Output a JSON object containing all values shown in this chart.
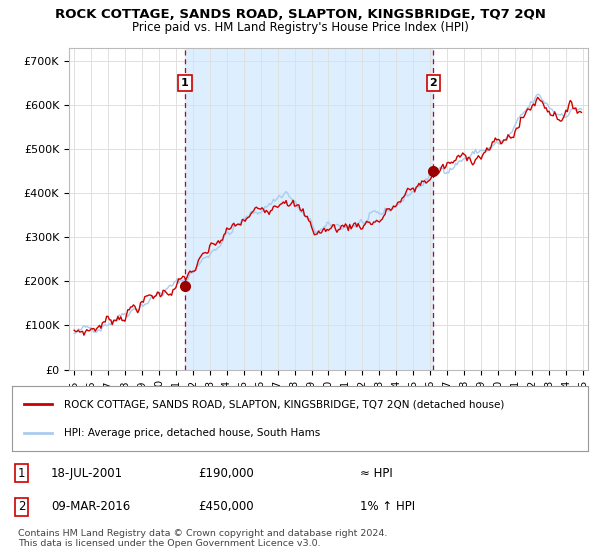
{
  "title": "ROCK COTTAGE, SANDS ROAD, SLAPTON, KINGSBRIDGE, TQ7 2QN",
  "subtitle": "Price paid vs. HM Land Registry's House Price Index (HPI)",
  "ylabel_ticks": [
    "£0",
    "£100K",
    "£200K",
    "£300K",
    "£400K",
    "£500K",
    "£600K",
    "£700K"
  ],
  "ytick_vals": [
    0,
    100000,
    200000,
    300000,
    400000,
    500000,
    600000,
    700000
  ],
  "ylim": [
    0,
    730000
  ],
  "xlim_start": 1994.7,
  "xlim_end": 2025.3,
  "sale1_x": 2001.54,
  "sale1_y": 190000,
  "sale2_x": 2016.19,
  "sale2_y": 450000,
  "legend_line1": "ROCK COTTAGE, SANDS ROAD, SLAPTON, KINGSBRIDGE, TQ7 2QN (detached house)",
  "legend_line2": "HPI: Average price, detached house, South Hams",
  "annotation1_label": "1",
  "annotation1_date": "18-JUL-2001",
  "annotation1_price": "£190,000",
  "annotation1_hpi": "≈ HPI",
  "annotation2_label": "2",
  "annotation2_date": "09-MAR-2016",
  "annotation2_price": "£450,000",
  "annotation2_hpi": "1% ↑ HPI",
  "footer": "Contains HM Land Registry data © Crown copyright and database right 2024.\nThis data is licensed under the Open Government Licence v3.0.",
  "line_color_red": "#cc0000",
  "line_color_blue": "#aaccee",
  "vline_color": "#cc0000",
  "sale_marker_color": "#990000",
  "box_color": "#cc0000",
  "shade_color": "#ddeeff",
  "background_color": "#ffffff",
  "grid_color": "#e0e0e0"
}
